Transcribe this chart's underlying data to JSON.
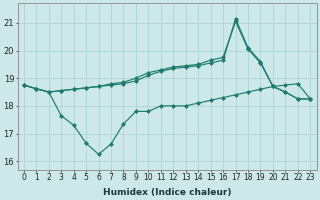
{
  "xlabel": "Humidex (Indice chaleur)",
  "background_color": "#cce8e8",
  "grid_color": "#aed4d4",
  "line_color": "#1e7b6e",
  "ylim": [
    15.7,
    21.7
  ],
  "xlim": [
    -0.5,
    23.5
  ],
  "yticks": [
    16,
    17,
    18,
    19,
    20,
    21
  ],
  "xticks": [
    0,
    1,
    2,
    3,
    4,
    5,
    6,
    7,
    8,
    9,
    10,
    11,
    12,
    13,
    14,
    15,
    16,
    17,
    18,
    19,
    20,
    21,
    22,
    23
  ],
  "series1_x": [
    0,
    1,
    2,
    3,
    4,
    5,
    6,
    7,
    8,
    9,
    10,
    11,
    12,
    13,
    14,
    15,
    16,
    17,
    18,
    19,
    20,
    21,
    22,
    23
  ],
  "series1_y": [
    18.75,
    18.62,
    18.5,
    17.65,
    17.3,
    16.65,
    16.25,
    16.62,
    17.35,
    17.8,
    17.8,
    18.0,
    18.0,
    18.0,
    18.1,
    18.2,
    18.3,
    18.4,
    18.5,
    18.6,
    18.7,
    18.75,
    18.8,
    18.25
  ],
  "series2_x": [
    0,
    1,
    2,
    3,
    4,
    5,
    6,
    7,
    8,
    9,
    10,
    11,
    12,
    13,
    14,
    15,
    16,
    17,
    18,
    19,
    20,
    21,
    22,
    23
  ],
  "series2_y": [
    18.75,
    18.62,
    18.5,
    18.55,
    18.6,
    18.65,
    18.7,
    18.8,
    18.85,
    19.0,
    19.2,
    19.3,
    19.4,
    19.45,
    19.5,
    19.65,
    19.75,
    21.05,
    20.05,
    19.55,
    18.7,
    18.5,
    18.25,
    18.25
  ],
  "series3_x": [
    0,
    1,
    2,
    3,
    4,
    5,
    6,
    7,
    8,
    9,
    10,
    11,
    12,
    13,
    14,
    15,
    16,
    17,
    18,
    19,
    20,
    21,
    22,
    23
  ],
  "series3_y": [
    18.75,
    18.62,
    18.5,
    18.55,
    18.6,
    18.65,
    18.7,
    18.75,
    18.8,
    18.9,
    19.1,
    19.25,
    19.35,
    19.4,
    19.45,
    19.55,
    19.65,
    21.15,
    20.1,
    19.6,
    18.7,
    18.5,
    18.25,
    18.25
  ],
  "xlabel_fontsize": 6.5,
  "tick_fontsize": 5.5,
  "ytick_fontsize": 6.0,
  "linewidth": 0.85,
  "markersize": 2.0
}
